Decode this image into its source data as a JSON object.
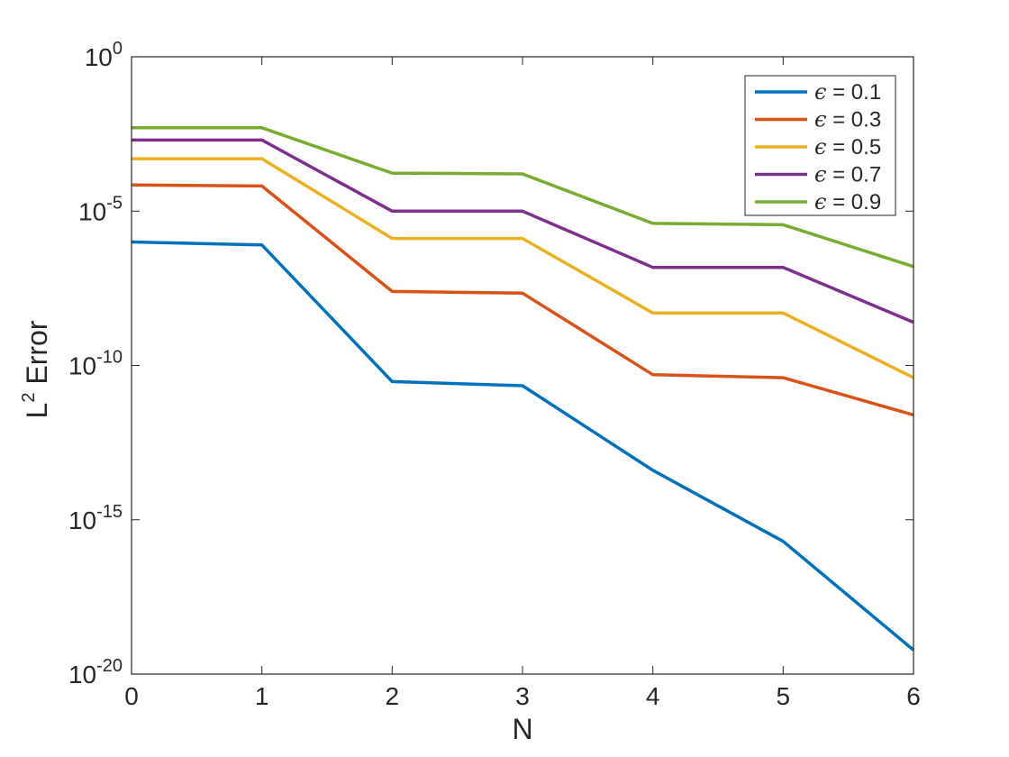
{
  "chart_data": {
    "type": "line",
    "title": "",
    "xlabel": "N",
    "ylabel": {
      "base": "L",
      "sup": "2",
      "rest": " Error"
    },
    "x": [
      0,
      1,
      2,
      3,
      4,
      5,
      6
    ],
    "xlim": [
      0,
      6
    ],
    "xticks": [
      "0",
      "1",
      "2",
      "3",
      "4",
      "5",
      "6"
    ],
    "yscale": "log",
    "ylim": [
      1e-20,
      1
    ],
    "yticks": [
      {
        "value": 1,
        "base": "10",
        "exp": "0"
      },
      {
        "value": 1e-05,
        "base": "10",
        "exp": "-5"
      },
      {
        "value": 1e-10,
        "base": "10",
        "exp": "-10"
      },
      {
        "value": 1e-15,
        "base": "10",
        "exp": "-15"
      },
      {
        "value": 1e-20,
        "base": "10",
        "exp": "-20"
      }
    ],
    "grid": false,
    "legend_position": "top-right",
    "series": [
      {
        "name": "ϵ = 0.1",
        "symbol": "ϵ",
        "label_rest": " = 0.1",
        "color": "#0072BD",
        "values": [
          1e-06,
          8e-07,
          3e-11,
          2.2e-11,
          4e-14,
          2e-16,
          6e-20
        ]
      },
      {
        "name": "ϵ = 0.3",
        "symbol": "ϵ",
        "label_rest": " = 0.3",
        "color": "#D95319",
        "values": [
          7e-05,
          6.5e-05,
          2.5e-08,
          2.2e-08,
          5e-11,
          4e-11,
          2.5e-12
        ]
      },
      {
        "name": "ϵ = 0.5",
        "symbol": "ϵ",
        "label_rest": " = 0.5",
        "color": "#EDB120",
        "values": [
          0.0005,
          0.0005,
          1.3e-06,
          1.3e-06,
          5e-09,
          5e-09,
          4e-11
        ]
      },
      {
        "name": "ϵ = 0.7",
        "symbol": "ϵ",
        "label_rest": " = 0.7",
        "color": "#7E2F8E",
        "values": [
          0.002,
          0.002,
          1e-05,
          1e-05,
          1.5e-07,
          1.5e-07,
          2.5e-09
        ]
      },
      {
        "name": "ϵ = 0.9",
        "symbol": "ϵ",
        "label_rest": " = 0.9",
        "color": "#77AC30",
        "values": [
          0.005,
          0.005,
          0.00017,
          0.00016,
          4e-06,
          3.6e-06,
          1.6e-07
        ]
      }
    ]
  }
}
